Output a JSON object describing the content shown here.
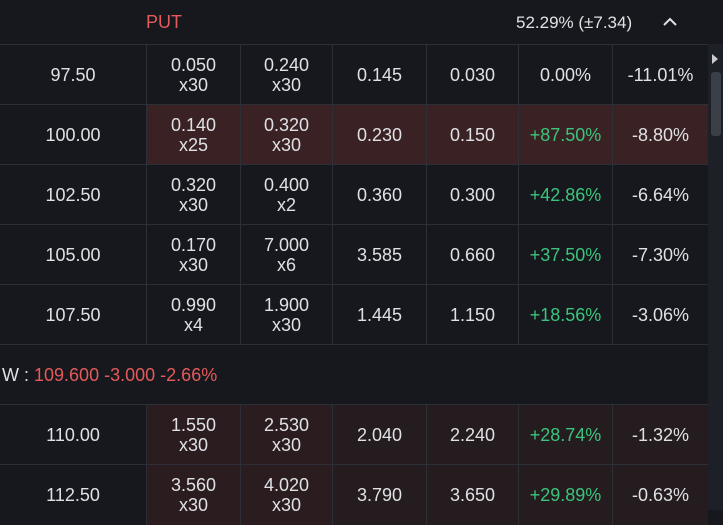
{
  "header": {
    "put_label": "PUT",
    "iv_value": "52.29% (±7.34)"
  },
  "rows_top": [
    {
      "strike": "97.50",
      "bid": "0.050",
      "bid_size": "x30",
      "ask": "0.240",
      "ask_size": "x30",
      "last": "0.145",
      "prev": "0.030",
      "chg_pct": "0.00%",
      "chg_pos": false,
      "prob": "-11.01%",
      "style": "normal"
    },
    {
      "strike": "100.00",
      "bid": "0.140",
      "bid_size": "x25",
      "ask": "0.320",
      "ask_size": "x30",
      "last": "0.230",
      "prev": "0.150",
      "chg_pct": "+87.50%",
      "chg_pos": true,
      "prob": "-8.80%",
      "style": "hl"
    },
    {
      "strike": "102.50",
      "bid": "0.320",
      "bid_size": "x30",
      "ask": "0.400",
      "ask_size": "x2",
      "last": "0.360",
      "prev": "0.300",
      "chg_pct": "+42.86%",
      "chg_pos": true,
      "prob": "-6.64%",
      "style": "normal"
    },
    {
      "strike": "105.00",
      "bid": "0.170",
      "bid_size": "x30",
      "ask": "7.000",
      "ask_size": "x6",
      "last": "3.585",
      "prev": "0.660",
      "chg_pct": "+37.50%",
      "chg_pos": true,
      "prob": "-7.30%",
      "style": "normal"
    },
    {
      "strike": "107.50",
      "bid": "0.990",
      "bid_size": "x4",
      "ask": "1.900",
      "ask_size": "x30",
      "last": "1.445",
      "prev": "1.150",
      "chg_pct": "+18.56%",
      "chg_pos": true,
      "prob": "-3.06%",
      "style": "normal"
    }
  ],
  "underlying": {
    "label": "W :",
    "price": "109.600",
    "change": "-3.000",
    "change_pct": "-2.66%"
  },
  "rows_bottom": [
    {
      "strike": "110.00",
      "bid": "1.550",
      "bid_size": "x30",
      "ask": "2.530",
      "ask_size": "x30",
      "last": "2.040",
      "prev": "2.240",
      "chg_pct": "+28.74%",
      "chg_pos": true,
      "prob": "-1.32%",
      "style": "hlb"
    },
    {
      "strike": "112.50",
      "bid": "3.560",
      "bid_size": "x30",
      "ask": "4.020",
      "ask_size": "x30",
      "last": "3.790",
      "prev": "3.650",
      "chg_pct": "+29.89%",
      "chg_pos": true,
      "prob": "-0.63%",
      "style": "hlb"
    }
  ],
  "colors": {
    "negative": "#e35b5b",
    "positive": "#3cc47c",
    "highlight": "#3a2224"
  },
  "icons": {
    "collapse": "chevron-up-icon",
    "scroll": "scroll-right-arrow-icon"
  }
}
